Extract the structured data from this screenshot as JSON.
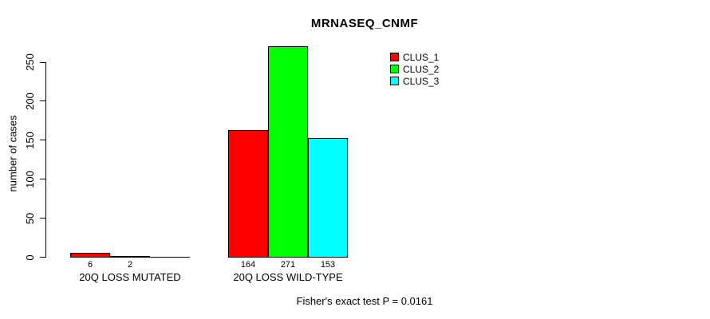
{
  "title": "MRNASEQ_CNMF",
  "footer_annotation": "Fisher's exact test P = 0.0161",
  "legend": {
    "entries": [
      {
        "label": "CLUS_1",
        "color": "#ff0000"
      },
      {
        "label": "CLUS_2",
        "color": "#00ff00"
      },
      {
        "label": "CLUS_3",
        "color": "#00ffff"
      }
    ]
  },
  "chart_data": {
    "type": "bar",
    "title": "MRNASEQ_CNMF",
    "xlabel": "",
    "ylabel": "number of cases",
    "categories": [
      "20Q LOSS MUTATED",
      "20Q LOSS WILD-TYPE"
    ],
    "series": [
      {
        "name": "CLUS_1",
        "color": "#ff0000",
        "values": [
          6,
          164
        ]
      },
      {
        "name": "CLUS_2",
        "color": "#00ff00",
        "values": [
          2,
          271
        ]
      },
      {
        "name": "CLUS_3",
        "color": "#00ffff",
        "values": [
          0,
          153
        ]
      }
    ],
    "bar_value_labels": [
      [
        "6",
        "2",
        ""
      ],
      [
        "164",
        "271",
        "153"
      ]
    ],
    "ylim": [
      0,
      250
    ],
    "yticks": [
      0,
      50,
      100,
      150,
      200,
      250
    ],
    "grid": false,
    "legend_position": "top-right",
    "annotation": "Fisher's exact test P = 0.0161"
  }
}
